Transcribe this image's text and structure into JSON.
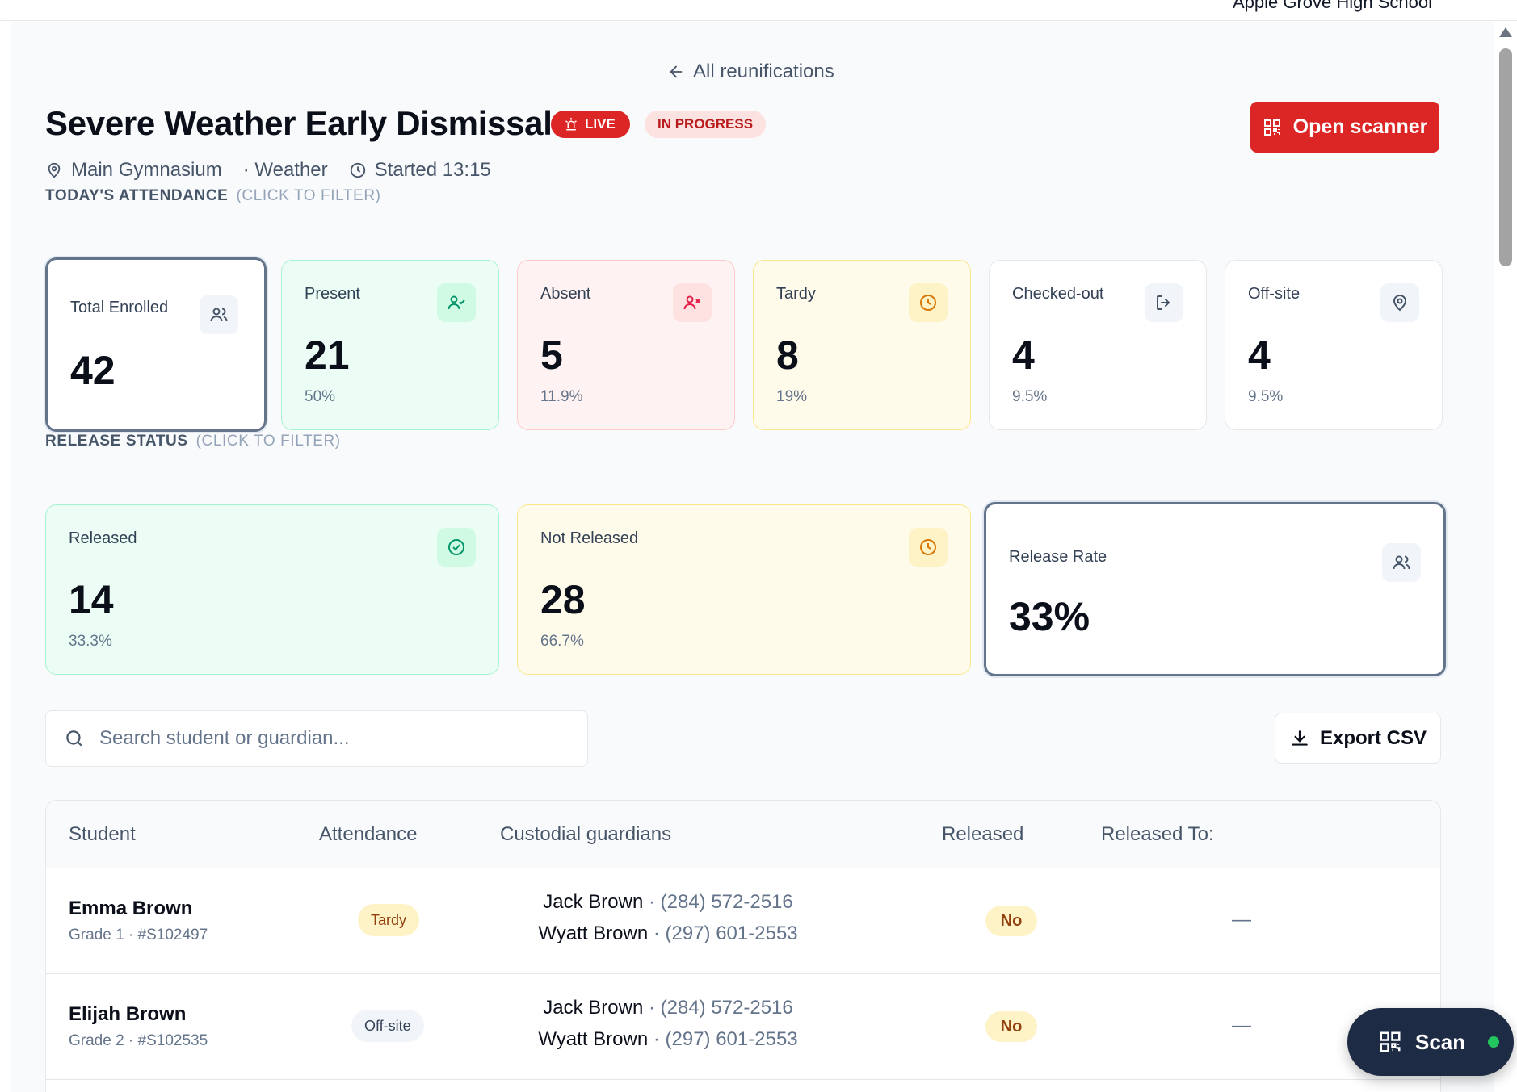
{
  "header": {
    "school_name": "Apple Grove High School"
  },
  "nav": {
    "back_label": "All reunifications"
  },
  "event": {
    "title": "Severe Weather Early Dismissal",
    "live_badge": "LIVE",
    "status_badge": "IN PROGRESS",
    "location": "Main Gymnasium",
    "category": "· Weather",
    "started": "Started 13:15"
  },
  "actions": {
    "open_scanner": "Open scanner",
    "export_csv": "Export CSV",
    "scan_fab": "Scan"
  },
  "attendance": {
    "section_title": "TODAY'S ATTENDANCE",
    "hint": "(CLICK TO FILTER)",
    "cards": [
      {
        "label": "Total Enrolled",
        "value": "42",
        "percent": ""
      },
      {
        "label": "Present",
        "value": "21",
        "percent": "50%"
      },
      {
        "label": "Absent",
        "value": "5",
        "percent": "11.9%"
      },
      {
        "label": "Tardy",
        "value": "8",
        "percent": "19%"
      },
      {
        "label": "Checked-out",
        "value": "4",
        "percent": "9.5%"
      },
      {
        "label": "Off-site",
        "value": "4",
        "percent": "9.5%"
      }
    ]
  },
  "release": {
    "section_title": "RELEASE STATUS",
    "hint": "(CLICK TO FILTER)",
    "cards": [
      {
        "label": "Released",
        "value": "14",
        "percent": "33.3%"
      },
      {
        "label": "Not Released",
        "value": "28",
        "percent": "66.7%"
      },
      {
        "label": "Release Rate",
        "value": "33%"
      }
    ]
  },
  "search": {
    "placeholder": "Search student or guardian..."
  },
  "table": {
    "columns": [
      "Student",
      "Attendance",
      "Custodial guardians",
      "Released",
      "Released To:"
    ],
    "rows": [
      {
        "name": "Emma Brown",
        "sub": "Grade 1 · #S102497",
        "attendance": "Tardy",
        "guardians": [
          {
            "name": "Jack Brown",
            "phone": " · (284) 572-2516"
          },
          {
            "name": "Wyatt Brown",
            "phone": " · (297) 601-2553"
          }
        ],
        "released": "No",
        "released_to": "—"
      },
      {
        "name": "Elijah Brown",
        "sub": "Grade 2 · #S102535",
        "attendance": "Off-site",
        "guardians": [
          {
            "name": "Jack Brown",
            "phone": " · (284) 572-2516"
          },
          {
            "name": "Wyatt Brown",
            "phone": " · (297) 601-2553"
          }
        ],
        "released": "No",
        "released_to": "—"
      }
    ]
  },
  "colors": {
    "accent_red": "#dc2626",
    "present_bg": "#ecfdf5",
    "absent_bg": "#fef2f2",
    "tardy_bg": "#fffbeb",
    "fab_bg": "#1e2b45",
    "status_dot": "#22c55e"
  }
}
